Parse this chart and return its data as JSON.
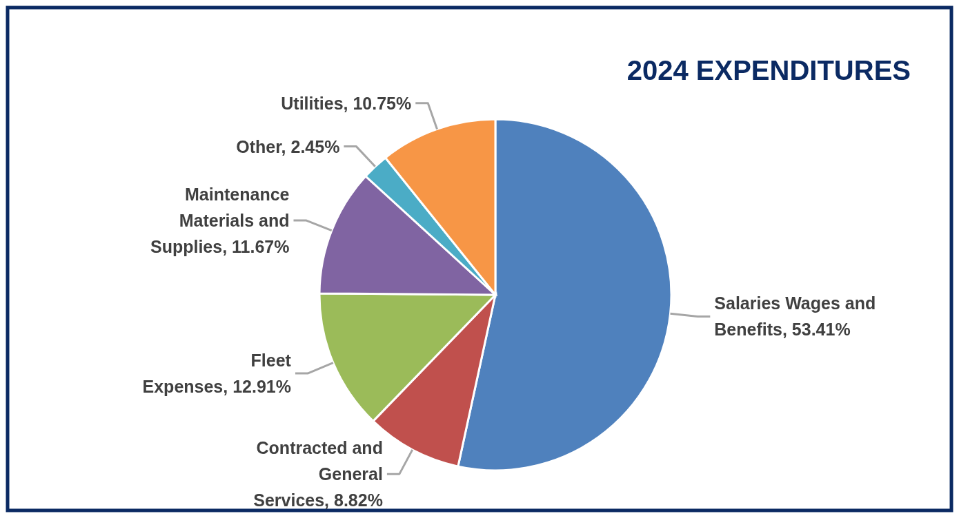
{
  "chart_data": {
    "type": "pie",
    "title": "2024 EXPENDITURES",
    "categories": [
      "Salaries Wages and Benefits",
      "Contracted and General Services",
      "Fleet Expenses",
      "Maintenance Materials and Supplies",
      "Other",
      "Utilities"
    ],
    "values": [
      53.41,
      8.82,
      12.91,
      11.67,
      2.45,
      10.75
    ],
    "value_labels": [
      "53.41%",
      "8.82%",
      "12.91%",
      "11.67%",
      "2.45%",
      "10.75%"
    ],
    "colors": [
      "#4f81bd",
      "#c0504d",
      "#9bbb59",
      "#8064a2",
      "#4bacc6",
      "#f79646"
    ]
  }
}
